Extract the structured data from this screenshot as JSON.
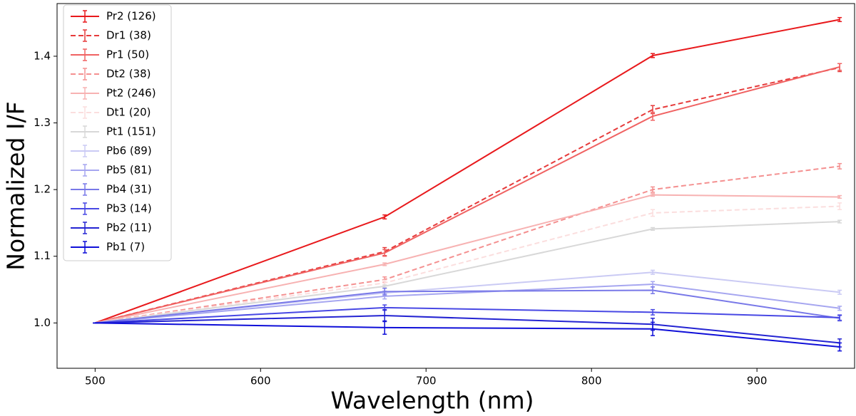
{
  "chart_data": {
    "type": "line",
    "xlabel": "Wavelength (nm)",
    "ylabel": "Normalized I/F",
    "x": [
      500,
      675,
      837,
      950
    ],
    "xlim": [
      477,
      959
    ],
    "xticks": [
      500,
      600,
      700,
      800,
      900
    ],
    "ylim": [
      0.932,
      1.479
    ],
    "yticks": [
      {
        "value": 1.0,
        "label": "1.0"
      },
      1.1,
      1.2,
      1.3,
      1.4
    ],
    "legend": "upper left",
    "series": [
      {
        "name": "Pr2 (126)",
        "color": "#e8191c",
        "dashed": false,
        "values": [
          1.0,
          1.159,
          1.401,
          1.455
        ],
        "errors": [
          0,
          0.003,
          0.003,
          0.003
        ]
      },
      {
        "name": "Dr1 (38)",
        "color": "#e63b3b",
        "dashed": true,
        "values": [
          1.0,
          1.107,
          1.32,
          1.383
        ],
        "errors": [
          0,
          0.006,
          0.006,
          0.006
        ]
      },
      {
        "name": "Pr1 (50)",
        "color": "#f06262",
        "dashed": false,
        "values": [
          1.0,
          1.105,
          1.31,
          1.384
        ],
        "errors": [
          0,
          0.005,
          0.006,
          0.005
        ]
      },
      {
        "name": "Dt2 (38)",
        "color": "#f49090",
        "dashed": true,
        "values": [
          1.0,
          1.065,
          1.2,
          1.235
        ],
        "errors": [
          0,
          0.004,
          0.004,
          0.004
        ]
      },
      {
        "name": "Pt2 (246)",
        "color": "#f7b2b2",
        "dashed": false,
        "values": [
          1.0,
          1.088,
          1.192,
          1.189
        ],
        "errors": [
          0,
          0.002,
          0.002,
          0.002
        ]
      },
      {
        "name": "Dt1 (20)",
        "color": "#fbdede",
        "dashed": true,
        "values": [
          1.0,
          1.06,
          1.165,
          1.175
        ],
        "errors": [
          0,
          0.004,
          0.005,
          0.005
        ]
      },
      {
        "name": "Pt1 (151)",
        "color": "#d8d8d8",
        "dashed": false,
        "values": [
          1.0,
          1.055,
          1.141,
          1.152
        ],
        "errors": [
          0,
          0.002,
          0.002,
          0.002
        ]
      },
      {
        "name": "Pb6 (89)",
        "color": "#cacaf4",
        "dashed": false,
        "values": [
          1.0,
          1.045,
          1.076,
          1.046
        ],
        "errors": [
          0,
          0.003,
          0.003,
          0.003
        ]
      },
      {
        "name": "Pb5 (81)",
        "color": "#a6a6f0",
        "dashed": false,
        "values": [
          1.0,
          1.04,
          1.058,
          1.022
        ],
        "errors": [
          0,
          0.004,
          0.004,
          0.003
        ]
      },
      {
        "name": "Pb4 (31)",
        "color": "#7878e8",
        "dashed": false,
        "values": [
          1.0,
          1.047,
          1.049,
          1.007
        ],
        "errors": [
          0,
          0.005,
          0.005,
          0.004
        ]
      },
      {
        "name": "Pb3 (14)",
        "color": "#4848e4",
        "dashed": false,
        "values": [
          1.0,
          1.023,
          1.016,
          1.008
        ],
        "errors": [
          0,
          0.004,
          0.004,
          0.004
        ]
      },
      {
        "name": "Pb2 (11)",
        "color": "#2424d2",
        "dashed": false,
        "values": [
          1.0,
          1.011,
          0.998,
          0.97
        ],
        "errors": [
          0,
          0.009,
          0.009,
          0.006
        ]
      },
      {
        "name": "Pb1 (7)",
        "color": "#0f0fd8",
        "dashed": false,
        "values": [
          1.0,
          0.993,
          0.991,
          0.964
        ],
        "errors": [
          0,
          0.01,
          0.01,
          0.006
        ]
      }
    ]
  }
}
